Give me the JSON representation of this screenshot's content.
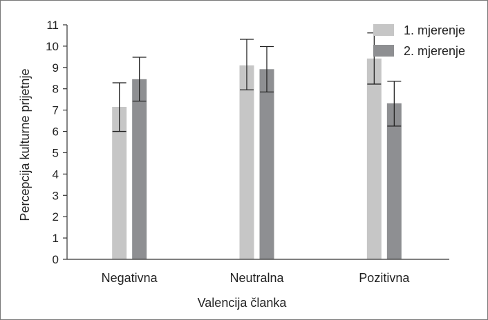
{
  "chart_data": {
    "type": "bar",
    "categories": [
      "Negativna",
      "Neutralna",
      "Pozitivna"
    ],
    "series": [
      {
        "name": "1. mjerenje",
        "color": "#c6c6c6",
        "values": [
          7.15,
          9.1,
          9.42
        ],
        "error_low": [
          6.0,
          7.95,
          8.22
        ],
        "error_high": [
          8.28,
          10.32,
          10.62
        ]
      },
      {
        "name": "2. mjerenje",
        "color": "#8e8f92",
        "values": [
          8.45,
          8.92,
          7.32
        ],
        "error_low": [
          7.42,
          7.85,
          6.25
        ],
        "error_high": [
          9.48,
          9.98,
          8.35
        ]
      }
    ],
    "yticks": [
      0,
      1,
      2,
      3,
      4,
      5,
      6,
      7,
      8,
      9,
      10,
      11
    ],
    "ylim": [
      0,
      11
    ],
    "xlabel": "Valencija članka",
    "ylabel": "Percepcija kulturne  prijetnje",
    "legend_position": "top-right",
    "grid": false
  }
}
